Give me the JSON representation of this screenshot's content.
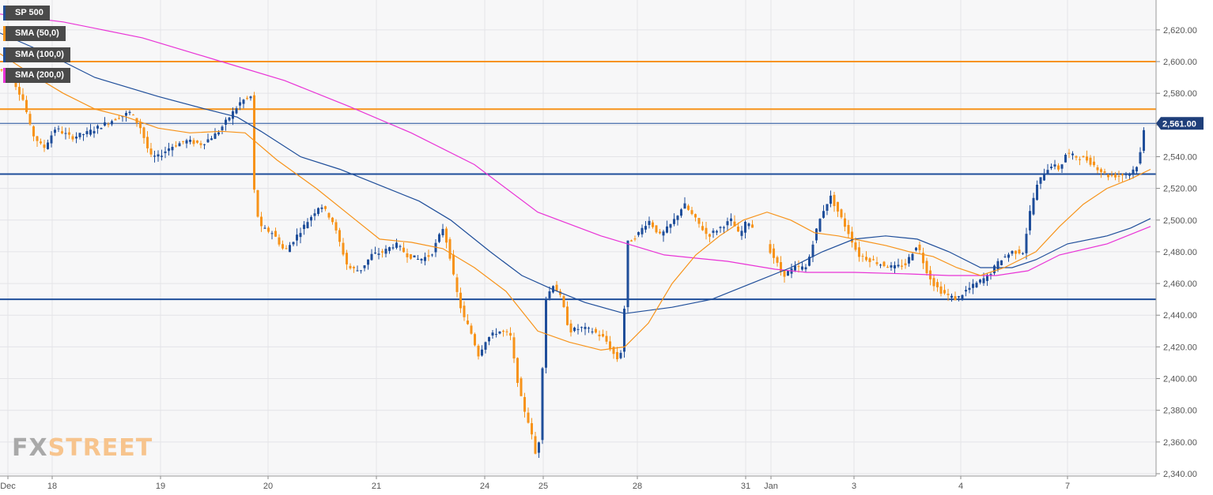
{
  "chart_data": {
    "type": "candlestick",
    "symbol": "SP 500",
    "legend": [
      {
        "label": "SP 500",
        "color": "#1f4e9a"
      },
      {
        "label": "SMA (50,0)",
        "color": "#f7931a"
      },
      {
        "label": "SMA (100,0)",
        "color": "#1f4e9a"
      },
      {
        "label": "SMA (200,0)",
        "color": "#e933d6"
      }
    ],
    "ylim": [
      2340,
      2630
    ],
    "y_ticks": [
      "2,620.00",
      "2,600.00",
      "2,580.00",
      "2,560.00",
      "2,540.00",
      "2,520.00",
      "2,500.00",
      "2,480.00",
      "2,460.00",
      "2,440.00",
      "2,420.00",
      "2,400.00",
      "2,380.00",
      "2,360.00",
      "2,340.00"
    ],
    "x_ticks": [
      "Dec",
      "18",
      "19",
      "20",
      "21",
      "24",
      "25",
      "28",
      "31",
      "Jan",
      "3",
      "4",
      "7"
    ],
    "last_price": 2561,
    "last_price_label": "2,561.00",
    "horizontal_levels": [
      {
        "value": 2600,
        "color": "#f7931a"
      },
      {
        "value": 2570,
        "color": "#f7931a"
      },
      {
        "value": 2529,
        "color": "#1f4e9a"
      },
      {
        "value": 2450,
        "color": "#1f4e9a"
      }
    ],
    "price_path": [
      [
        0,
        2595
      ],
      [
        15,
        2590
      ],
      [
        30,
        2575
      ],
      [
        40,
        2555
      ],
      [
        55,
        2545
      ],
      [
        70,
        2558
      ],
      [
        90,
        2552
      ],
      [
        110,
        2555
      ],
      [
        130,
        2560
      ],
      [
        150,
        2565
      ],
      [
        165,
        2568
      ],
      [
        178,
        2558
      ],
      [
        190,
        2540
      ],
      [
        200,
        2540
      ],
      [
        215,
        2546
      ],
      [
        235,
        2550
      ],
      [
        255,
        2548
      ],
      [
        275,
        2555
      ],
      [
        290,
        2565
      ],
      [
        305,
        2575
      ],
      [
        318,
        2578
      ],
      [
        322,
        2510
      ],
      [
        330,
        2495
      ],
      [
        345,
        2492
      ],
      [
        360,
        2480
      ],
      [
        375,
        2490
      ],
      [
        390,
        2500
      ],
      [
        405,
        2510
      ],
      [
        420,
        2500
      ],
      [
        430,
        2485
      ],
      [
        440,
        2470
      ],
      [
        455,
        2468
      ],
      [
        470,
        2478
      ],
      [
        485,
        2480
      ],
      [
        500,
        2485
      ],
      [
        515,
        2478
      ],
      [
        530,
        2475
      ],
      [
        545,
        2478
      ],
      [
        560,
        2495
      ],
      [
        568,
        2480
      ],
      [
        575,
        2460
      ],
      [
        585,
        2440
      ],
      [
        595,
        2430
      ],
      [
        605,
        2415
      ],
      [
        615,
        2425
      ],
      [
        630,
        2430
      ],
      [
        645,
        2428
      ],
      [
        652,
        2405
      ],
      [
        660,
        2385
      ],
      [
        670,
        2370
      ],
      [
        680,
        2345
      ],
      [
        690,
        2450
      ],
      [
        700,
        2460
      ],
      [
        710,
        2450
      ],
      [
        720,
        2430
      ],
      [
        735,
        2432
      ],
      [
        750,
        2430
      ],
      [
        765,
        2425
      ],
      [
        780,
        2412
      ],
      [
        788,
        2420
      ],
      [
        792,
        2485
      ],
      [
        805,
        2490
      ],
      [
        820,
        2500
      ],
      [
        835,
        2490
      ],
      [
        850,
        2498
      ],
      [
        865,
        2510
      ],
      [
        880,
        2500
      ],
      [
        895,
        2490
      ],
      [
        910,
        2495
      ],
      [
        925,
        2500
      ],
      [
        935,
        2490
      ],
      [
        945,
        2500
      ],
      [
        975,
        2480
      ],
      [
        990,
        2465
      ],
      [
        1005,
        2470
      ],
      [
        1020,
        2470
      ],
      [
        1030,
        2490
      ],
      [
        1040,
        2505
      ],
      [
        1050,
        2515
      ],
      [
        1060,
        2505
      ],
      [
        1075,
        2490
      ],
      [
        1085,
        2478
      ],
      [
        1100,
        2475
      ],
      [
        1115,
        2472
      ],
      [
        1130,
        2470
      ],
      [
        1145,
        2472
      ],
      [
        1160,
        2485
      ],
      [
        1170,
        2470
      ],
      [
        1180,
        2460
      ],
      [
        1190,
        2455
      ],
      [
        1200,
        2452
      ],
      [
        1210,
        2450
      ],
      [
        1220,
        2455
      ],
      [
        1235,
        2460
      ],
      [
        1250,
        2465
      ],
      [
        1265,
        2475
      ],
      [
        1280,
        2480
      ],
      [
        1295,
        2480
      ],
      [
        1300,
        2500
      ],
      [
        1310,
        2520
      ],
      [
        1320,
        2530
      ],
      [
        1330,
        2535
      ],
      [
        1340,
        2532
      ],
      [
        1348,
        2542
      ],
      [
        1360,
        2540
      ],
      [
        1375,
        2538
      ],
      [
        1390,
        2532
      ],
      [
        1400,
        2528
      ],
      [
        1415,
        2528
      ],
      [
        1430,
        2530
      ],
      [
        1440,
        2536
      ],
      [
        1448,
        2561
      ]
    ],
    "sma50_path": [
      [
        0,
        2605
      ],
      [
        40,
        2592
      ],
      [
        80,
        2580
      ],
      [
        120,
        2570
      ],
      [
        160,
        2565
      ],
      [
        200,
        2558
      ],
      [
        240,
        2555
      ],
      [
        280,
        2556
      ],
      [
        310,
        2555
      ],
      [
        350,
        2538
      ],
      [
        400,
        2520
      ],
      [
        450,
        2500
      ],
      [
        480,
        2488
      ],
      [
        520,
        2486
      ],
      [
        560,
        2482
      ],
      [
        600,
        2470
      ],
      [
        640,
        2455
      ],
      [
        680,
        2430
      ],
      [
        720,
        2423
      ],
      [
        760,
        2418
      ],
      [
        790,
        2420
      ],
      [
        820,
        2435
      ],
      [
        850,
        2460
      ],
      [
        880,
        2478
      ],
      [
        910,
        2490
      ],
      [
        940,
        2500
      ],
      [
        970,
        2505
      ],
      [
        1000,
        2500
      ],
      [
        1030,
        2492
      ],
      [
        1060,
        2490
      ],
      [
        1090,
        2487
      ],
      [
        1120,
        2484
      ],
      [
        1150,
        2480
      ],
      [
        1180,
        2477
      ],
      [
        1210,
        2470
      ],
      [
        1240,
        2465
      ],
      [
        1270,
        2470
      ],
      [
        1290,
        2475
      ],
      [
        1310,
        2480
      ],
      [
        1340,
        2496
      ],
      [
        1370,
        2510
      ],
      [
        1400,
        2520
      ],
      [
        1430,
        2526
      ],
      [
        1455,
        2532
      ]
    ],
    "sma100_path": [
      [
        0,
        2618
      ],
      [
        60,
        2605
      ],
      [
        120,
        2590
      ],
      [
        200,
        2578
      ],
      [
        260,
        2570
      ],
      [
        300,
        2565
      ],
      [
        330,
        2556
      ],
      [
        380,
        2540
      ],
      [
        430,
        2532
      ],
      [
        480,
        2522
      ],
      [
        530,
        2512
      ],
      [
        570,
        2500
      ],
      [
        620,
        2480
      ],
      [
        660,
        2465
      ],
      [
        700,
        2456
      ],
      [
        740,
        2448
      ],
      [
        790,
        2441
      ],
      [
        850,
        2445
      ],
      [
        900,
        2450
      ],
      [
        950,
        2460
      ],
      [
        1000,
        2470
      ],
      [
        1040,
        2480
      ],
      [
        1080,
        2488
      ],
      [
        1120,
        2490
      ],
      [
        1160,
        2488
      ],
      [
        1200,
        2480
      ],
      [
        1240,
        2470
      ],
      [
        1280,
        2470
      ],
      [
        1310,
        2475
      ],
      [
        1350,
        2485
      ],
      [
        1400,
        2490
      ],
      [
        1430,
        2495
      ],
      [
        1455,
        2501
      ]
    ],
    "sma200_path": [
      [
        0,
        2630
      ],
      [
        80,
        2625
      ],
      [
        180,
        2615
      ],
      [
        280,
        2600
      ],
      [
        360,
        2588
      ],
      [
        440,
        2572
      ],
      [
        520,
        2555
      ],
      [
        600,
        2535
      ],
      [
        680,
        2505
      ],
      [
        760,
        2490
      ],
      [
        840,
        2478
      ],
      [
        920,
        2474
      ],
      [
        980,
        2469
      ],
      [
        1020,
        2467
      ],
      [
        1080,
        2467
      ],
      [
        1150,
        2466
      ],
      [
        1200,
        2465
      ],
      [
        1260,
        2465
      ],
      [
        1300,
        2468
      ],
      [
        1340,
        2478
      ],
      [
        1400,
        2485
      ],
      [
        1455,
        2496
      ]
    ]
  },
  "logo": {
    "part1": "FX",
    "part2": "STREET"
  }
}
